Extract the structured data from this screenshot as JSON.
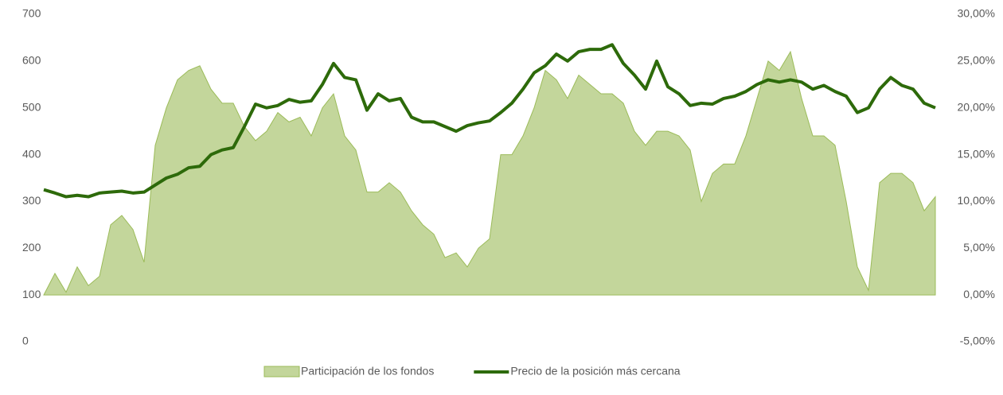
{
  "chart_data": {
    "type": "line",
    "ylim": [
      0,
      700
    ],
    "yticks": [
      0,
      100,
      200,
      300,
      400,
      500,
      600,
      700
    ],
    "y2lim": [
      -5,
      30
    ],
    "y2ticks": [
      {
        "value": -5,
        "label": "-5,00%"
      },
      {
        "value": 0,
        "label": "0,00%"
      },
      {
        "value": 5,
        "label": "5,00%"
      },
      {
        "value": 10,
        "label": "10,00%"
      },
      {
        "value": 15,
        "label": "15,00%"
      },
      {
        "value": 20,
        "label": "20,00%"
      },
      {
        "value": 25,
        "label": "25,00%"
      },
      {
        "value": 30,
        "label": "30,00%"
      }
    ],
    "grid": false,
    "legend": "bottom",
    "series": [
      {
        "name": "Participación de los fondos",
        "kind": "area",
        "axis": "y2",
        "color": "#c3d69b",
        "values": [
          0,
          2.3,
          0.3,
          3.0,
          1.0,
          2.0,
          7.5,
          8.5,
          7,
          3.5,
          16,
          20,
          23,
          24,
          24.5,
          22,
          20.5,
          20.5,
          18,
          16.5,
          17.5,
          19.5,
          18.5,
          19,
          17,
          20,
          21.5,
          17,
          15.5,
          11,
          11,
          12,
          11,
          9,
          7.5,
          6.5,
          4,
          4.5,
          3,
          5,
          6,
          15,
          15,
          17,
          20,
          24,
          23,
          21,
          23.5,
          22.5,
          21.5,
          21.5,
          20.5,
          17.5,
          16,
          17.5,
          17.5,
          17,
          15.5,
          10,
          13,
          14,
          14,
          17,
          21,
          25,
          24,
          26,
          21,
          17,
          17,
          16,
          10,
          3,
          0.5,
          12,
          13,
          13,
          12,
          9,
          10.5
        ]
      },
      {
        "name": "Precio de la posición más cercana",
        "kind": "line",
        "axis": "y",
        "color": "#2d6a0a",
        "values": [
          325,
          318,
          310,
          313,
          310,
          318,
          320,
          322,
          318,
          320,
          335,
          350,
          358,
          372,
          375,
          400,
          410,
          415,
          460,
          508,
          500,
          505,
          518,
          512,
          515,
          550,
          595,
          565,
          560,
          495,
          530,
          515,
          520,
          480,
          470,
          470,
          460,
          450,
          462,
          468,
          472,
          490,
          510,
          540,
          575,
          590,
          615,
          600,
          620,
          625,
          625,
          635,
          595,
          570,
          540,
          600,
          545,
          530,
          505,
          510,
          508,
          520,
          525,
          535,
          550,
          560,
          555,
          560,
          555,
          540,
          548,
          535,
          525,
          490,
          500,
          540,
          565,
          548,
          540,
          510,
          500
        ]
      }
    ]
  }
}
